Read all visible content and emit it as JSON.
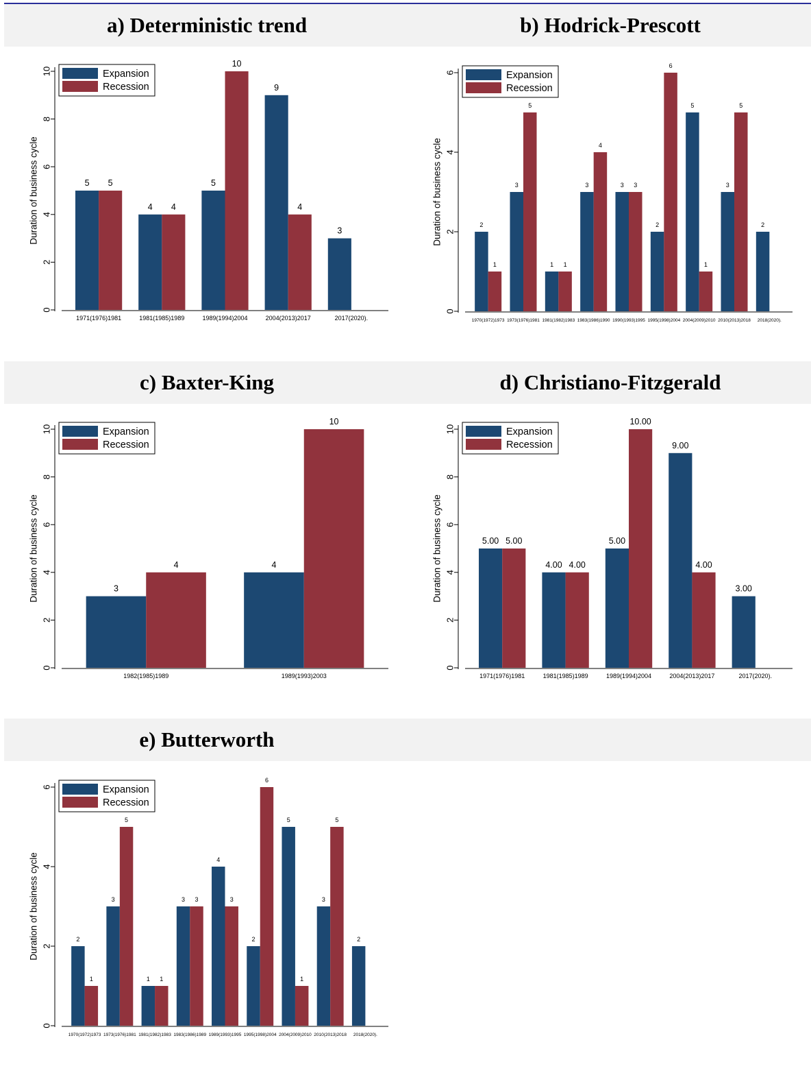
{
  "colors": {
    "expansion": "#1c4872",
    "recession": "#91333d",
    "band": "#f2f2f2",
    "rule": "#2a2f9a"
  },
  "chart_data": [
    {
      "type": "bar",
      "title": "a) Deterministic trend",
      "ylabel": "Duration of business cycle",
      "ylim": [
        0,
        10
      ],
      "yticks": [
        0,
        2,
        4,
        6,
        8,
        10
      ],
      "legend": {
        "position": "top-left",
        "entries": [
          "Expansion",
          "Recession"
        ]
      },
      "categories": [
        "1971(1976)1981",
        "1981(1985)1989",
        "1989(1994)2004",
        "2004(2013)2017",
        "2017(2020)."
      ],
      "series": [
        {
          "name": "Expansion",
          "values": [
            5,
            4,
            5,
            9,
            3
          ]
        },
        {
          "name": "Recession",
          "values": [
            5,
            4,
            10,
            4,
            null
          ]
        }
      ],
      "labels": {
        "Expansion": [
          "5",
          "4",
          "5",
          "9",
          "3"
        ],
        "Recession": [
          "5",
          "4",
          "10",
          "4",
          ""
        ]
      }
    },
    {
      "type": "bar",
      "title": "b) Hodrick-Prescott",
      "ylabel": "Duration of business cycle",
      "ylim": [
        0,
        6
      ],
      "yticks": [
        0,
        2,
        4,
        6
      ],
      "legend": {
        "position": "top-left",
        "entries": [
          "Expansion",
          "Recession"
        ]
      },
      "categories": [
        "1970(1972)1973",
        "1973(1976)1981",
        "1981(1982)1983",
        "1983(1986)1990",
        "1990(1993)1995",
        "1995(1998)2004",
        "2004(2009)2010",
        "2010(2013)2018",
        "2018(2020)."
      ],
      "series": [
        {
          "name": "Expansion",
          "values": [
            2,
            3,
            1,
            3,
            3,
            2,
            5,
            3,
            2
          ]
        },
        {
          "name": "Recession",
          "values": [
            1,
            5,
            1,
            4,
            3,
            6,
            1,
            5,
            null
          ]
        }
      ],
      "labels": {
        "Expansion": [
          "2",
          "3",
          "1",
          "3",
          "3",
          "2",
          "5",
          "3",
          "2"
        ],
        "Recession": [
          "1",
          "5",
          "1",
          "4",
          "3",
          "6",
          "1",
          "5",
          ""
        ]
      }
    },
    {
      "type": "bar",
      "title": "c) Baxter-King",
      "ylabel": "Duration of business cycle",
      "ylim": [
        0,
        10
      ],
      "yticks": [
        0,
        2,
        4,
        6,
        8,
        10
      ],
      "legend": {
        "position": "top-left",
        "entries": [
          "Expansion",
          "Recession"
        ]
      },
      "categories": [
        "1982(1985)1989",
        "1989(1993)2003"
      ],
      "series": [
        {
          "name": "Expansion",
          "values": [
            3,
            4
          ]
        },
        {
          "name": "Recession",
          "values": [
            4,
            10
          ]
        }
      ],
      "labels": {
        "Expansion": [
          "3",
          "4"
        ],
        "Recession": [
          "4",
          "10"
        ]
      }
    },
    {
      "type": "bar",
      "title": "d) Christiano-Fitzgerald",
      "ylabel": "Duration of business cycle",
      "ylim": [
        0,
        10
      ],
      "yticks": [
        0,
        2,
        4,
        6,
        8,
        10
      ],
      "legend": {
        "position": "top-left",
        "entries": [
          "Expansion",
          "Recession"
        ]
      },
      "categories": [
        "1971(1976)1981",
        "1981(1985)1989",
        "1989(1994)2004",
        "2004(2013)2017",
        "2017(2020)."
      ],
      "series": [
        {
          "name": "Expansion",
          "values": [
            5,
            4,
            5,
            9,
            3
          ]
        },
        {
          "name": "Recession",
          "values": [
            5,
            4,
            10,
            4,
            null
          ]
        }
      ],
      "labels": {
        "Expansion": [
          "5.00",
          "4.00",
          "5.00",
          "9.00",
          "3.00"
        ],
        "Recession": [
          "5.00",
          "4.00",
          "10.00",
          "4.00",
          ""
        ]
      }
    },
    {
      "type": "bar",
      "title": "e) Butterworth",
      "ylabel": "Duration of business cycle",
      "ylim": [
        0,
        6
      ],
      "yticks": [
        0,
        2,
        4,
        6
      ],
      "legend": {
        "position": "top-left",
        "entries": [
          "Expansion",
          "Recession"
        ]
      },
      "categories": [
        "1970(1972)1973",
        "1973(1976)1981",
        "1981(1982)1983",
        "1983(1986)1989",
        "1989(1993)1995",
        "1995(1998)2004",
        "2004(2009)2010",
        "2010(2013)2018",
        "2018(2020)."
      ],
      "series": [
        {
          "name": "Expansion",
          "values": [
            2,
            3,
            1,
            3,
            4,
            2,
            5,
            3,
            2
          ]
        },
        {
          "name": "Recession",
          "values": [
            1,
            5,
            1,
            3,
            3,
            6,
            1,
            5,
            null
          ]
        }
      ],
      "labels": {
        "Expansion": [
          "2",
          "3",
          "1",
          "3",
          "4",
          "2",
          "5",
          "3",
          "2"
        ],
        "Recession": [
          "1",
          "5",
          "1",
          "3",
          "3",
          "6",
          "1",
          "5",
          ""
        ]
      }
    }
  ]
}
